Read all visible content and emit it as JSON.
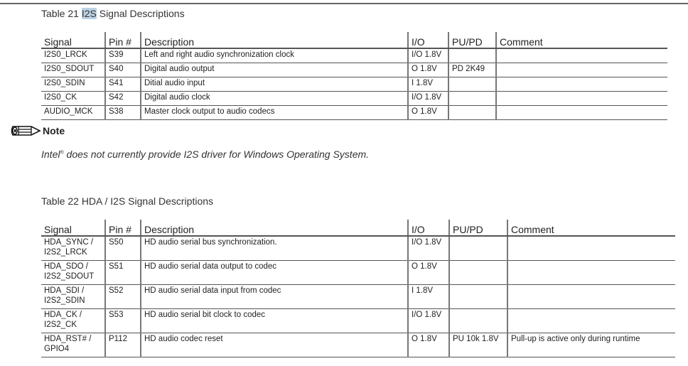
{
  "table21": {
    "title_prefix": "Table 21 ",
    "title_highlight": "I2S",
    "title_suffix": " Signal Descriptions",
    "headers": [
      "Signal",
      "Pin #",
      "Description",
      "I/O",
      "PU/PD",
      "Comment"
    ],
    "rows": [
      [
        "I2S0_LRCK",
        "S39",
        "Left and right audio synchronization clock",
        "I/O 1.8V",
        "",
        ""
      ],
      [
        "I2S0_SDOUT",
        "S40",
        "Digital audio output",
        "O 1.8V",
        "PD 2K49",
        ""
      ],
      [
        "I2S0_SDIN",
        "S41",
        "Ditial audio input",
        "I 1.8V",
        "",
        ""
      ],
      [
        "I2S0_CK",
        "S42",
        "Digital audio clock",
        "I/O 1.8V",
        "",
        ""
      ],
      [
        "AUDIO_MCK",
        "S38",
        "Master clock output to audio codecs",
        "O 1.8V",
        "",
        ""
      ]
    ]
  },
  "note": {
    "icon": "pencil-note-icon",
    "label": "Note",
    "text_brand": "Intel",
    "text_reg": "®",
    "text_rest": " does not currently provide I2S driver for Windows Operating System."
  },
  "table22": {
    "title": "Table 22 HDA / I2S Signal Descriptions",
    "headers": [
      "Signal",
      "Pin #",
      "Description",
      "I/O",
      "PU/PD",
      "Comment"
    ],
    "rows": [
      [
        [
          "HDA_SYNC /",
          "I2S2_LRCK"
        ],
        "S50",
        "HD audio serial bus synchronization.",
        "I/O 1.8V",
        "",
        ""
      ],
      [
        [
          "HDA_SDO /",
          "I2S2_SDOUT"
        ],
        "S51",
        "HD audio serial data output to codec",
        "O 1.8V",
        "",
        ""
      ],
      [
        [
          "HDA_SDI /",
          "I2S2_SDIN"
        ],
        "S52",
        "HD audio serial data input from codec",
        "I 1.8V",
        "",
        ""
      ],
      [
        [
          "HDA_CK /",
          "I2S2_CK"
        ],
        "S53",
        "HD audio serial bit clock to codec",
        "I/O 1.8V",
        "",
        ""
      ],
      [
        [
          "HDA_RST# /",
          "GPIO4"
        ],
        "P112",
        "HD audio codec reset",
        "O 1.8V",
        "PU 10k 1.8V",
        "Pull-up is active only during runtime"
      ]
    ]
  }
}
